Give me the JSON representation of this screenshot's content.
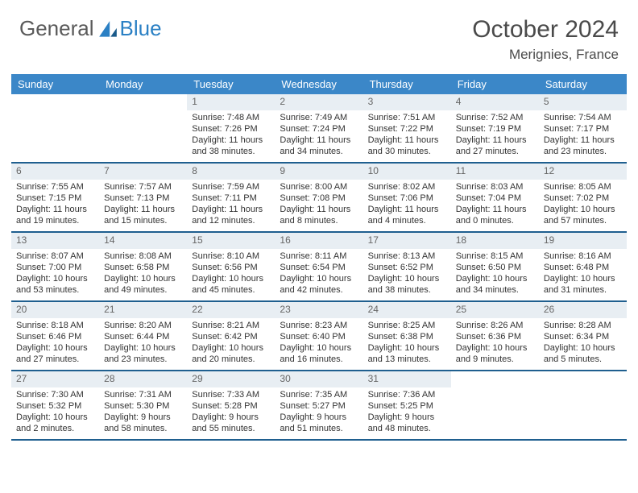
{
  "brand": {
    "part1": "General",
    "part2": "Blue"
  },
  "header": {
    "title": "October 2024",
    "location": "Merignies, France"
  },
  "colors": {
    "header_bg": "#3b87c8",
    "divider": "#1f5f8f",
    "daynum_bg": "#e8eef3",
    "brand_blue": "#2b80c4"
  },
  "dow": [
    "Sunday",
    "Monday",
    "Tuesday",
    "Wednesday",
    "Thursday",
    "Friday",
    "Saturday"
  ],
  "weeks": [
    [
      {
        "empty": true
      },
      {
        "empty": true
      },
      {
        "day": "1",
        "sunrise": "Sunrise: 7:48 AM",
        "sunset": "Sunset: 7:26 PM",
        "daylight": "Daylight: 11 hours and 38 minutes."
      },
      {
        "day": "2",
        "sunrise": "Sunrise: 7:49 AM",
        "sunset": "Sunset: 7:24 PM",
        "daylight": "Daylight: 11 hours and 34 minutes."
      },
      {
        "day": "3",
        "sunrise": "Sunrise: 7:51 AM",
        "sunset": "Sunset: 7:22 PM",
        "daylight": "Daylight: 11 hours and 30 minutes."
      },
      {
        "day": "4",
        "sunrise": "Sunrise: 7:52 AM",
        "sunset": "Sunset: 7:19 PM",
        "daylight": "Daylight: 11 hours and 27 minutes."
      },
      {
        "day": "5",
        "sunrise": "Sunrise: 7:54 AM",
        "sunset": "Sunset: 7:17 PM",
        "daylight": "Daylight: 11 hours and 23 minutes."
      }
    ],
    [
      {
        "day": "6",
        "sunrise": "Sunrise: 7:55 AM",
        "sunset": "Sunset: 7:15 PM",
        "daylight": "Daylight: 11 hours and 19 minutes."
      },
      {
        "day": "7",
        "sunrise": "Sunrise: 7:57 AM",
        "sunset": "Sunset: 7:13 PM",
        "daylight": "Daylight: 11 hours and 15 minutes."
      },
      {
        "day": "8",
        "sunrise": "Sunrise: 7:59 AM",
        "sunset": "Sunset: 7:11 PM",
        "daylight": "Daylight: 11 hours and 12 minutes."
      },
      {
        "day": "9",
        "sunrise": "Sunrise: 8:00 AM",
        "sunset": "Sunset: 7:08 PM",
        "daylight": "Daylight: 11 hours and 8 minutes."
      },
      {
        "day": "10",
        "sunrise": "Sunrise: 8:02 AM",
        "sunset": "Sunset: 7:06 PM",
        "daylight": "Daylight: 11 hours and 4 minutes."
      },
      {
        "day": "11",
        "sunrise": "Sunrise: 8:03 AM",
        "sunset": "Sunset: 7:04 PM",
        "daylight": "Daylight: 11 hours and 0 minutes."
      },
      {
        "day": "12",
        "sunrise": "Sunrise: 8:05 AM",
        "sunset": "Sunset: 7:02 PM",
        "daylight": "Daylight: 10 hours and 57 minutes."
      }
    ],
    [
      {
        "day": "13",
        "sunrise": "Sunrise: 8:07 AM",
        "sunset": "Sunset: 7:00 PM",
        "daylight": "Daylight: 10 hours and 53 minutes."
      },
      {
        "day": "14",
        "sunrise": "Sunrise: 8:08 AM",
        "sunset": "Sunset: 6:58 PM",
        "daylight": "Daylight: 10 hours and 49 minutes."
      },
      {
        "day": "15",
        "sunrise": "Sunrise: 8:10 AM",
        "sunset": "Sunset: 6:56 PM",
        "daylight": "Daylight: 10 hours and 45 minutes."
      },
      {
        "day": "16",
        "sunrise": "Sunrise: 8:11 AM",
        "sunset": "Sunset: 6:54 PM",
        "daylight": "Daylight: 10 hours and 42 minutes."
      },
      {
        "day": "17",
        "sunrise": "Sunrise: 8:13 AM",
        "sunset": "Sunset: 6:52 PM",
        "daylight": "Daylight: 10 hours and 38 minutes."
      },
      {
        "day": "18",
        "sunrise": "Sunrise: 8:15 AM",
        "sunset": "Sunset: 6:50 PM",
        "daylight": "Daylight: 10 hours and 34 minutes."
      },
      {
        "day": "19",
        "sunrise": "Sunrise: 8:16 AM",
        "sunset": "Sunset: 6:48 PM",
        "daylight": "Daylight: 10 hours and 31 minutes."
      }
    ],
    [
      {
        "day": "20",
        "sunrise": "Sunrise: 8:18 AM",
        "sunset": "Sunset: 6:46 PM",
        "daylight": "Daylight: 10 hours and 27 minutes."
      },
      {
        "day": "21",
        "sunrise": "Sunrise: 8:20 AM",
        "sunset": "Sunset: 6:44 PM",
        "daylight": "Daylight: 10 hours and 23 minutes."
      },
      {
        "day": "22",
        "sunrise": "Sunrise: 8:21 AM",
        "sunset": "Sunset: 6:42 PM",
        "daylight": "Daylight: 10 hours and 20 minutes."
      },
      {
        "day": "23",
        "sunrise": "Sunrise: 8:23 AM",
        "sunset": "Sunset: 6:40 PM",
        "daylight": "Daylight: 10 hours and 16 minutes."
      },
      {
        "day": "24",
        "sunrise": "Sunrise: 8:25 AM",
        "sunset": "Sunset: 6:38 PM",
        "daylight": "Daylight: 10 hours and 13 minutes."
      },
      {
        "day": "25",
        "sunrise": "Sunrise: 8:26 AM",
        "sunset": "Sunset: 6:36 PM",
        "daylight": "Daylight: 10 hours and 9 minutes."
      },
      {
        "day": "26",
        "sunrise": "Sunrise: 8:28 AM",
        "sunset": "Sunset: 6:34 PM",
        "daylight": "Daylight: 10 hours and 5 minutes."
      }
    ],
    [
      {
        "day": "27",
        "sunrise": "Sunrise: 7:30 AM",
        "sunset": "Sunset: 5:32 PM",
        "daylight": "Daylight: 10 hours and 2 minutes."
      },
      {
        "day": "28",
        "sunrise": "Sunrise: 7:31 AM",
        "sunset": "Sunset: 5:30 PM",
        "daylight": "Daylight: 9 hours and 58 minutes."
      },
      {
        "day": "29",
        "sunrise": "Sunrise: 7:33 AM",
        "sunset": "Sunset: 5:28 PM",
        "daylight": "Daylight: 9 hours and 55 minutes."
      },
      {
        "day": "30",
        "sunrise": "Sunrise: 7:35 AM",
        "sunset": "Sunset: 5:27 PM",
        "daylight": "Daylight: 9 hours and 51 minutes."
      },
      {
        "day": "31",
        "sunrise": "Sunrise: 7:36 AM",
        "sunset": "Sunset: 5:25 PM",
        "daylight": "Daylight: 9 hours and 48 minutes."
      },
      {
        "empty": true
      },
      {
        "empty": true
      }
    ]
  ]
}
